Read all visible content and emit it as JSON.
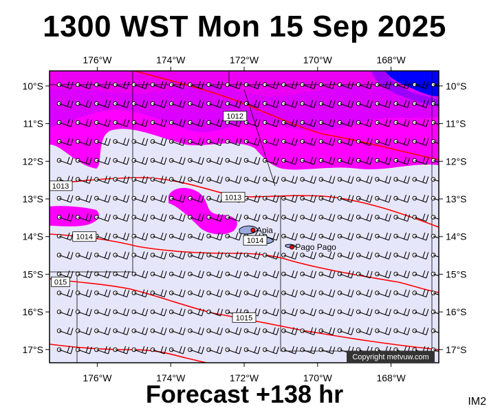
{
  "title": "1300 WST Mon 15 Sep 2025",
  "footer": "Forecast +138 hr",
  "corner_label": "IM2",
  "copyright": "Copyright metvuw.com",
  "map": {
    "lon_ticks": [
      "176°W",
      "174°W",
      "172°W",
      "170°W",
      "168°W"
    ],
    "lat_ticks": [
      "10°S",
      "11°S",
      "12°S",
      "13°S",
      "14°S",
      "15°S",
      "16°S",
      "17°S"
    ],
    "places": [
      {
        "name": "Apia",
        "lon": -171.76,
        "lat": -13.83
      },
      {
        "name": "Pago Pago",
        "lon": -170.7,
        "lat": -14.28
      }
    ],
    "isobars": [
      {
        "label": "1012",
        "lon": -172.25,
        "lat": -10.8
      },
      {
        "label": "1013",
        "lon": -177.0,
        "lat": -12.65
      },
      {
        "label": "1013",
        "lon": -172.3,
        "lat": -12.95
      },
      {
        "label": "1014",
        "lon": -176.35,
        "lat": -14.0
      },
      {
        "label": "1014",
        "lon": -171.7,
        "lat": -14.1
      },
      {
        "label": "015",
        "lon": -177.0,
        "lat": -15.2
      },
      {
        "label": "1015",
        "lon": -172.0,
        "lat": -16.15
      }
    ],
    "colors": {
      "land_bg": "#e6e6fa",
      "light_magenta": "#ee00ee",
      "magenta": "#ff00ff",
      "purple": "#c000ff",
      "blue": "#0000ff",
      "isobar": "#ff0000"
    },
    "wind_direction": "easterly"
  }
}
